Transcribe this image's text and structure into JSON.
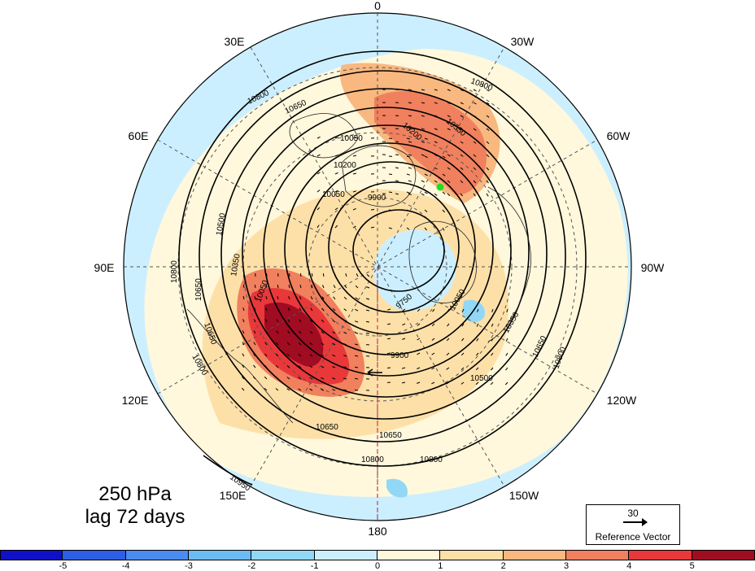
{
  "map": {
    "projection": "north-polar-stereographic",
    "longitude_labels": [
      {
        "text": "0",
        "lon": 0
      },
      {
        "text": "30E",
        "lon": 30
      },
      {
        "text": "60E",
        "lon": 60
      },
      {
        "text": "90E",
        "lon": 90
      },
      {
        "text": "120E",
        "lon": 120
      },
      {
        "text": "150E",
        "lon": 150
      },
      {
        "text": "180",
        "lon": 180
      },
      {
        "text": "150W",
        "lon": -150
      },
      {
        "text": "120W",
        "lon": -120
      },
      {
        "text": "90W",
        "lon": -90
      },
      {
        "text": "60W",
        "lon": -60
      },
      {
        "text": "30W",
        "lon": -30
      }
    ],
    "contour_labels": [
      "10950",
      "10800",
      "10650",
      "10500",
      "10350",
      "10200",
      "10050",
      "9900",
      "9750",
      "10550"
    ],
    "marker_color": "#22dd22",
    "vector_color": "#000000"
  },
  "caption": {
    "line1": "250 hPa",
    "line2": "lag 72 days"
  },
  "reference_vector": {
    "value": "30",
    "label": "Reference Vector"
  },
  "colorbar": {
    "colors": [
      "#1010c8",
      "#2e5ee6",
      "#4a8cf0",
      "#6cbcf4",
      "#92d8f6",
      "#ccefff",
      "#fff8dc",
      "#fde0a8",
      "#f8b880",
      "#f0805e",
      "#e8383a",
      "#a00c22"
    ],
    "tick_labels": [
      "-5",
      "-4",
      "-3",
      "-2",
      "-1",
      "0",
      "1",
      "2",
      "3",
      "4",
      "5"
    ]
  }
}
